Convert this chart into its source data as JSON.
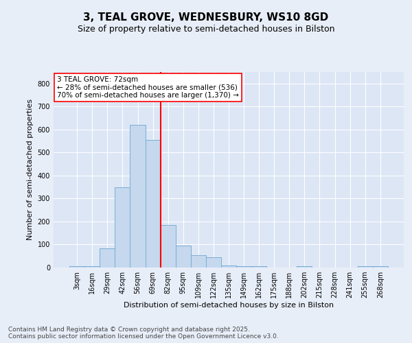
{
  "title1": "3, TEAL GROVE, WEDNESBURY, WS10 8GD",
  "title2": "Size of property relative to semi-detached houses in Bilston",
  "xlabel": "Distribution of semi-detached houses by size in Bilston",
  "ylabel": "Number of semi-detached properties",
  "categories": [
    "3sqm",
    "16sqm",
    "29sqm",
    "42sqm",
    "56sqm",
    "69sqm",
    "82sqm",
    "95sqm",
    "109sqm",
    "122sqm",
    "135sqm",
    "149sqm",
    "162sqm",
    "175sqm",
    "188sqm",
    "202sqm",
    "215sqm",
    "228sqm",
    "241sqm",
    "255sqm",
    "268sqm"
  ],
  "values": [
    5,
    5,
    85,
    350,
    620,
    555,
    185,
    95,
    55,
    45,
    10,
    5,
    5,
    0,
    0,
    5,
    0,
    0,
    0,
    5,
    5
  ],
  "bar_color": "#c5d8ee",
  "bar_edge_color": "#7aaed4",
  "vline_color": "red",
  "annotation_text": "3 TEAL GROVE: 72sqm\n← 28% of semi-detached houses are smaller (536)\n70% of semi-detached houses are larger (1,370) →",
  "annotation_box_color": "white",
  "annotation_box_edge_color": "red",
  "footnote": "Contains HM Land Registry data © Crown copyright and database right 2025.\nContains public sector information licensed under the Open Government Licence v3.0.",
  "ylim": [
    0,
    850
  ],
  "yticks": [
    0,
    100,
    200,
    300,
    400,
    500,
    600,
    700,
    800
  ],
  "background_color": "#e8eef8",
  "plot_background_color": "#dce6f5",
  "grid_color": "white",
  "title_fontsize": 11,
  "subtitle_fontsize": 9,
  "axis_label_fontsize": 8,
  "tick_fontsize": 7,
  "annotation_fontsize": 7.5,
  "footnote_fontsize": 6.5
}
